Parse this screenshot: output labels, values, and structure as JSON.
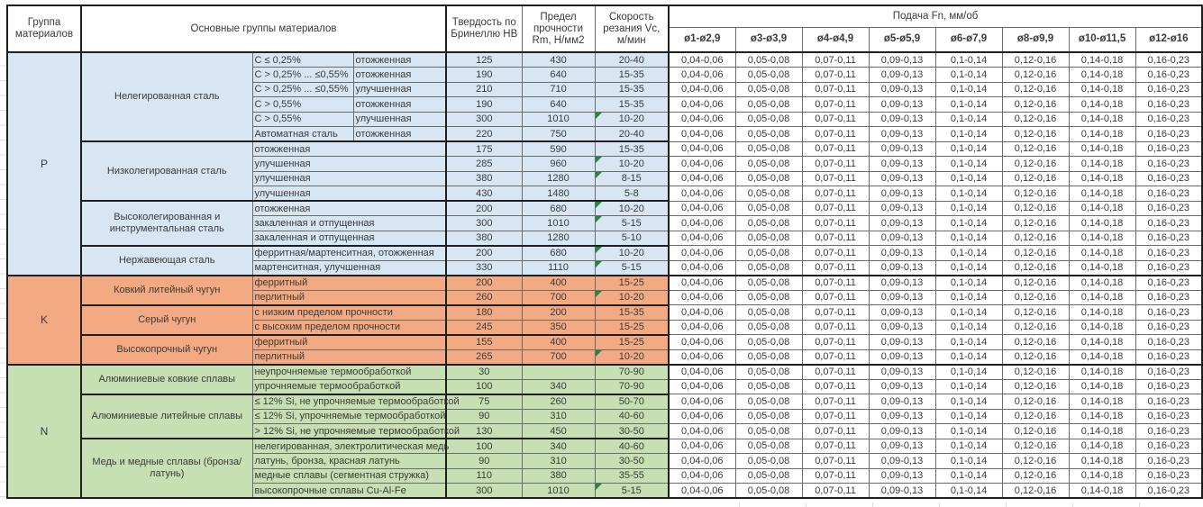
{
  "header": {
    "col_group": "Группа материалов",
    "col_main": "Основные группы материалов",
    "col_hb": "Твердость по Бринеллю HB",
    "col_rm": "Предел прочности Rm, Н/мм2",
    "col_vc": "Скорость резания Vc, м/мин",
    "col_feed": "Подача Fn, мм/об",
    "diameters": [
      "ø1-ø2,9",
      "ø3-ø3,9",
      "ø4-ø4,9",
      "ø5-ø5,9",
      "ø6-ø7,9",
      "ø8-ø9,9",
      "ø10-ø11,5",
      "ø12-ø16"
    ]
  },
  "feed_values": [
    "0,04-0,06",
    "0,05-0,08",
    "0,07-0,11",
    "0,09-0,13",
    "0,1-0,14",
    "0,12-0,16",
    "0,14-0,18",
    "0,16-0,23"
  ],
  "colors": {
    "section_p": "#d8e6f4",
    "section_k": "#f3aa82",
    "section_n": "#c6dfb3",
    "comment_marker": "#1f8a38"
  },
  "sections": [
    {
      "group": "P",
      "key": "p",
      "subgroups": [
        {
          "name": "Нелегированная сталь",
          "rows": [
            {
              "desc1": "C ≤ 0,25%",
              "desc2": "отожженная",
              "hb": "125",
              "rm": "430",
              "vc": "20-40",
              "marker": false
            },
            {
              "desc1": "C > 0,25% ... ≤0,55%",
              "desc2": "отожженная",
              "hb": "190",
              "rm": "640",
              "vc": "15-35",
              "marker": false
            },
            {
              "desc1": "C > 0,25% ... ≤0,55%",
              "desc2": "улучшенная",
              "hb": "210",
              "rm": "710",
              "vc": "15-35",
              "marker": false
            },
            {
              "desc1": "C > 0,55%",
              "desc2": "отожженная",
              "hb": "190",
              "rm": "640",
              "vc": "15-35",
              "marker": false
            },
            {
              "desc1": "C > 0,55%",
              "desc2": "улучшенная",
              "hb": "300",
              "rm": "1010",
              "vc": "10-20",
              "marker": true
            },
            {
              "desc1": "Автоматная сталь",
              "desc2": "отожженная",
              "hb": "220",
              "rm": "750",
              "vc": "20-40",
              "marker": false
            }
          ]
        },
        {
          "name": "Низколегированная сталь",
          "rows": [
            {
              "desc1": "отожженная",
              "desc2": null,
              "hb": "175",
              "rm": "590",
              "vc": "15-35",
              "marker": false
            },
            {
              "desc1": "улучшенная",
              "desc2": null,
              "hb": "285",
              "rm": "960",
              "vc": "10-20",
              "marker": true
            },
            {
              "desc1": "улучшенная",
              "desc2": null,
              "hb": "380",
              "rm": "1280",
              "vc": "8-15",
              "marker": true
            },
            {
              "desc1": "улучшенная",
              "desc2": null,
              "hb": "430",
              "rm": "1480",
              "vc": "5-8",
              "marker": false
            }
          ]
        },
        {
          "name": "Высоколегированная и инструментальная сталь",
          "rows": [
            {
              "desc1": "отожженная",
              "desc2": null,
              "hb": "200",
              "rm": "680",
              "vc": "10-20",
              "marker": true
            },
            {
              "desc1": "закаленная и отпущенная",
              "desc2": null,
              "hb": "300",
              "rm": "1010",
              "vc": "5-15",
              "marker": true
            },
            {
              "desc1": "закаленная и отпущенная",
              "desc2": null,
              "hb": "380",
              "rm": "1280",
              "vc": "5-10",
              "marker": false
            }
          ]
        },
        {
          "name": "Нержавеющая сталь",
          "rows": [
            {
              "desc1": "ферритная/мартенситная, отожженная",
              "desc2": null,
              "hb": "200",
              "rm": "680",
              "vc": "10-20",
              "marker": true
            },
            {
              "desc1": "мартенситная, улучшенная",
              "desc2": null,
              "hb": "330",
              "rm": "1110",
              "vc": "5-15",
              "marker": true
            }
          ]
        }
      ]
    },
    {
      "group": "K",
      "key": "k",
      "subgroups": [
        {
          "name": "Ковкий литейный чугун",
          "rows": [
            {
              "desc1": "ферритный",
              "desc2": null,
              "hb": "200",
              "rm": "400",
              "vc": "15-25",
              "marker": false
            },
            {
              "desc1": "перлитный",
              "desc2": null,
              "hb": "260",
              "rm": "700",
              "vc": "10-20",
              "marker": true
            }
          ]
        },
        {
          "name": "Серый чугун",
          "rows": [
            {
              "desc1": "с низким пределом прочности",
              "desc2": null,
              "hb": "180",
              "rm": "200",
              "vc": "15-35",
              "marker": false
            },
            {
              "desc1": "с высоким пределом прочности",
              "desc2": null,
              "hb": "245",
              "rm": "350",
              "vc": "15-25",
              "marker": false
            }
          ]
        },
        {
          "name": "Высокопрочный чугун",
          "rows": [
            {
              "desc1": "ферритный",
              "desc2": null,
              "hb": "155",
              "rm": "400",
              "vc": "15-25",
              "marker": false
            },
            {
              "desc1": "перлитный",
              "desc2": null,
              "hb": "265",
              "rm": "700",
              "vc": "10-20",
              "marker": true
            }
          ]
        }
      ]
    },
    {
      "group": "N",
      "key": "n",
      "subgroups": [
        {
          "name": "Алюминиевые ковкие сплавы",
          "rows": [
            {
              "desc1": "неупрочняемые термообработкой",
              "desc2": null,
              "hb": "30",
              "rm": "",
              "vc": "70-90",
              "marker": false
            },
            {
              "desc1": "упрочняемые термообработкой",
              "desc2": null,
              "hb": "100",
              "rm": "340",
              "vc": "70-90",
              "marker": false
            }
          ]
        },
        {
          "name": "Алюминиевые литейные сплавы",
          "rows": [
            {
              "desc1": "≤ 12% Si, не упрочняемые термообработкой",
              "desc2": null,
              "hb": "75",
              "rm": "260",
              "vc": "50-70",
              "marker": false
            },
            {
              "desc1": "≤ 12% Si, упрочняемые термообработкой",
              "desc2": null,
              "hb": "90",
              "rm": "310",
              "vc": "40-60",
              "marker": false
            },
            {
              "desc1": "> 12% Si, не упрочняемые термообработкой",
              "desc2": null,
              "hb": "130",
              "rm": "450",
              "vc": "30-50",
              "marker": false
            }
          ]
        },
        {
          "name": "Медь и медные сплавы (бронза/латунь)",
          "rows": [
            {
              "desc1": "нелегированная, электролитическая медь",
              "desc2": null,
              "hb": "100",
              "rm": "340",
              "vc": "40-60",
              "marker": false
            },
            {
              "desc1": "латунь, бронза, красная латунь",
              "desc2": null,
              "hb": "90",
              "rm": "310",
              "vc": "30-50",
              "marker": false
            },
            {
              "desc1": "медные сплавы (сегментная стружка)",
              "desc2": null,
              "hb": "110",
              "rm": "380",
              "vc": "35-55",
              "marker": false
            },
            {
              "desc1": "высокопрочные сплавы Cu-Al-Fe",
              "desc2": null,
              "hb": "300",
              "rm": "1010",
              "vc": "5-15",
              "marker": true
            }
          ]
        }
      ]
    }
  ]
}
